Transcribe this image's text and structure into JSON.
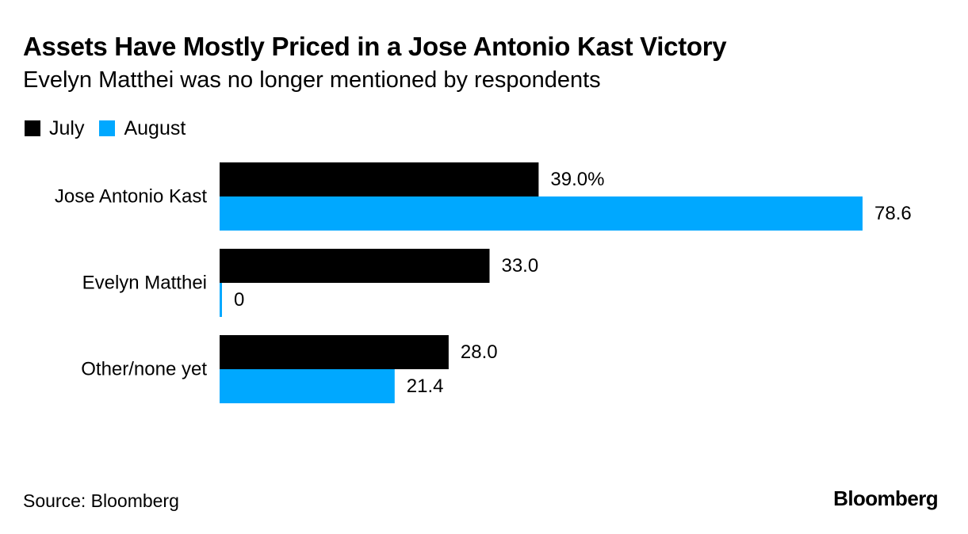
{
  "chart_data": {
    "type": "bar",
    "orientation": "horizontal",
    "title": "Assets Have Mostly Priced in a Jose Antonio Kast Victory",
    "subtitle": "Evelyn Matthei was no longer mentioned by respondents",
    "categories": [
      "Jose Antonio Kast",
      "Evelyn Matthei",
      "Other/none yet"
    ],
    "series": [
      {
        "name": "July",
        "color": "#000000",
        "values": [
          39.0,
          33.0,
          28.0
        ],
        "labels": [
          "39.0%",
          "33.0",
          "28.0"
        ]
      },
      {
        "name": "August",
        "color": "#00a8ff",
        "values": [
          78.6,
          0,
          21.4
        ],
        "labels": [
          "78.6",
          "0",
          "21.4"
        ]
      }
    ],
    "xlim": [
      0,
      80
    ],
    "xlabel": "",
    "ylabel": "",
    "grid": false,
    "legend_position": "top-left"
  },
  "footer": {
    "source": "Source: Bloomberg",
    "brand": "Bloomberg"
  }
}
